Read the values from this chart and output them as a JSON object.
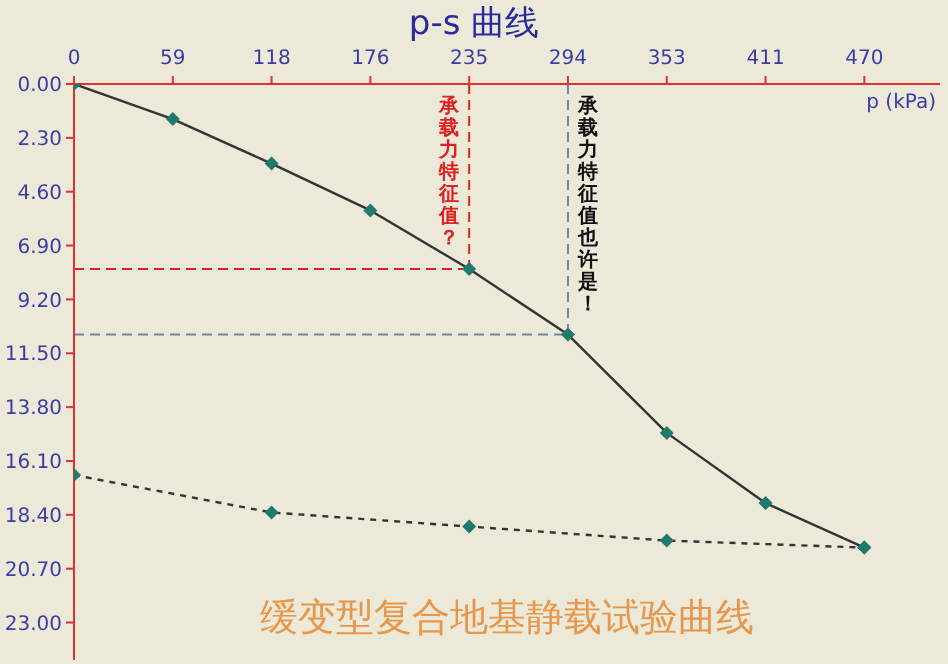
{
  "chart_data": {
    "type": "line",
    "title": "p-s 曲线",
    "xlabel": "p (kPa)",
    "annotations": [
      "缓变型复合地基静载试验曲线"
    ],
    "xlim": [
      0,
      515
    ],
    "xticks": [
      0,
      {
        "value": 58.75,
        "label": "59"
      },
      {
        "value": 117.5,
        "label": "118"
      },
      {
        "value": 176.25,
        "label": "176"
      },
      235,
      {
        "value": 293.75,
        "label": "294"
      },
      {
        "value": 352.5,
        "label": "353"
      },
      {
        "value": 411.25,
        "label": "411"
      },
      470
    ],
    "ylim": [
      24.6,
      0
    ],
    "yticks": [
      {
        "value": 0,
        "label": "0.00"
      },
      {
        "value": 2.3,
        "label": "2.30"
      },
      {
        "value": 4.6,
        "label": "4.60"
      },
      {
        "value": 6.9,
        "label": "6.90"
      },
      {
        "value": 9.2,
        "label": "9.20"
      },
      {
        "value": 11.5,
        "label": "11.50"
      },
      {
        "value": 13.8,
        "label": "13.80"
      },
      {
        "value": 16.1,
        "label": "16.10"
      },
      {
        "value": 18.4,
        "label": "18.40"
      },
      {
        "value": 20.7,
        "label": "20.70"
      },
      {
        "value": 23,
        "label": "23.00"
      }
    ],
    "series": [
      {
        "color": "#333333",
        "line_style": "solid",
        "marker": "diamond",
        "x": [
          0,
          58.75,
          117.5,
          176.25,
          235,
          293.75,
          352.5,
          411.25,
          470
        ],
        "values": [
          0,
          1.5,
          3.4,
          5.4,
          7.9,
          10.7,
          14.9,
          17.9,
          19.8
        ]
      },
      {
        "color": "#333333",
        "line_style": "dotted",
        "marker": "diamond",
        "x": [
          0,
          117.5,
          235,
          352.5,
          470
        ],
        "values": [
          16.7,
          18.3,
          18.9,
          19.5,
          19.8
        ]
      }
    ],
    "ref_lines": [
      {
        "axis": "x",
        "value": 235,
        "label": "承载力特征值？",
        "color": "#e02020",
        "line_style": "dashed"
      },
      {
        "axis": "y",
        "value": 7.9,
        "color": "#e02020",
        "line_style": "dashed"
      },
      {
        "axis": "x",
        "value": 293.75,
        "label": "承载力特征值也许是！",
        "color": "#6a8aa0",
        "line_style": "dashed"
      },
      {
        "axis": "y",
        "value": 10.7,
        "color": "#6a8aa0",
        "line_style": "dashed"
      }
    ],
    "grid": false,
    "legend": false
  }
}
